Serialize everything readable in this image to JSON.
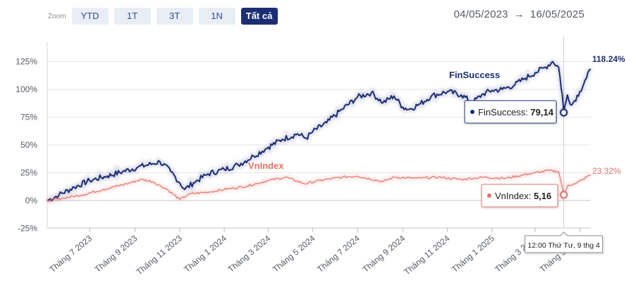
{
  "zoom": {
    "label": "Zoom",
    "buttons": [
      {
        "label": "YTD",
        "active": false
      },
      {
        "label": "1T",
        "active": false
      },
      {
        "label": "3T",
        "active": false
      },
      {
        "label": "1N",
        "active": false
      },
      {
        "label": "Tất cả",
        "active": true
      }
    ]
  },
  "range": {
    "start": "04/05/2023",
    "arrow": "→",
    "end": "16/05/2025"
  },
  "colors": {
    "finsuccess": "#1c2e73",
    "vnindex": "#e2726b",
    "grid": "#e6e6e6",
    "crosshair": "#cfcfcf"
  },
  "chart_data": {
    "type": "line",
    "title": "",
    "xlabel": "",
    "ylabel": "",
    "ylim": [
      -25,
      130
    ],
    "y_ticks": [
      -25,
      0,
      25,
      50,
      75,
      100,
      125
    ],
    "y_tick_labels": [
      "-25%",
      "0%",
      "25%",
      "50%",
      "75%",
      "100%",
      "125%"
    ],
    "x_range": [
      "2023-05-04",
      "2025-05-16"
    ],
    "x_ticks": [
      {
        "date": "2023-07-01",
        "label": "Tháng 7 2023"
      },
      {
        "date": "2023-09-01",
        "label": "Tháng 9 2023"
      },
      {
        "date": "2023-11-01",
        "label": "Tháng 11 2023"
      },
      {
        "date": "2024-01-01",
        "label": "Tháng 1 2024"
      },
      {
        "date": "2024-03-01",
        "label": "Tháng 3 2024"
      },
      {
        "date": "2024-05-01",
        "label": "Tháng 5 2024"
      },
      {
        "date": "2024-07-01",
        "label": "Tháng 7 2024"
      },
      {
        "date": "2024-09-01",
        "label": "Tháng 9 2024"
      },
      {
        "date": "2024-11-01",
        "label": "Tháng 11 2024"
      },
      {
        "date": "2025-01-01",
        "label": "Tháng 1 2025"
      },
      {
        "date": "2025-03-01",
        "label": "Tháng 3 2025"
      },
      {
        "date": "2025-05-01",
        "label": "Tháng 5 2025"
      }
    ],
    "series": [
      {
        "name": "FinSuccess",
        "end_label": "118.24%",
        "points": [
          [
            "2023-05-04",
            0
          ],
          [
            "2023-05-20",
            5
          ],
          [
            "2023-06-10",
            12
          ],
          [
            "2023-07-01",
            18
          ],
          [
            "2023-07-25",
            22
          ],
          [
            "2023-08-15",
            26
          ],
          [
            "2023-09-05",
            30
          ],
          [
            "2023-09-25",
            33
          ],
          [
            "2023-10-05",
            35
          ],
          [
            "2023-10-20",
            26
          ],
          [
            "2023-11-01",
            16
          ],
          [
            "2023-11-08",
            10
          ],
          [
            "2023-11-20",
            16
          ],
          [
            "2023-12-10",
            24
          ],
          [
            "2024-01-01",
            28
          ],
          [
            "2024-01-20",
            32
          ],
          [
            "2024-02-10",
            40
          ],
          [
            "2024-03-01",
            48
          ],
          [
            "2024-03-20",
            55
          ],
          [
            "2024-04-10",
            60
          ],
          [
            "2024-04-22",
            56
          ],
          [
            "2024-05-01",
            62
          ],
          [
            "2024-05-20",
            70
          ],
          [
            "2024-06-10",
            82
          ],
          [
            "2024-07-01",
            93
          ],
          [
            "2024-07-20",
            97
          ],
          [
            "2024-08-05",
            88
          ],
          [
            "2024-08-20",
            94
          ],
          [
            "2024-09-01",
            84
          ],
          [
            "2024-09-10",
            82
          ],
          [
            "2024-09-25",
            87
          ],
          [
            "2024-10-10",
            94
          ],
          [
            "2024-11-01",
            98
          ],
          [
            "2024-11-20",
            95
          ],
          [
            "2024-12-05",
            88
          ],
          [
            "2024-12-20",
            96
          ],
          [
            "2025-01-01",
            99
          ],
          [
            "2025-01-15",
            100
          ],
          [
            "2025-02-01",
            104
          ],
          [
            "2025-02-15",
            110
          ],
          [
            "2025-03-01",
            115
          ],
          [
            "2025-03-15",
            120
          ],
          [
            "2025-03-25",
            125
          ],
          [
            "2025-04-02",
            120
          ],
          [
            "2025-04-07",
            95
          ],
          [
            "2025-04-09",
            79.14
          ],
          [
            "2025-04-14",
            95
          ],
          [
            "2025-04-20",
            86
          ],
          [
            "2025-05-01",
            98
          ],
          [
            "2025-05-10",
            110
          ],
          [
            "2025-05-16",
            118.24
          ]
        ]
      },
      {
        "name": "VnIndex",
        "end_label": "23.32%",
        "points": [
          [
            "2023-05-04",
            0
          ],
          [
            "2023-05-25",
            2
          ],
          [
            "2023-06-20",
            5
          ],
          [
            "2023-07-20",
            10
          ],
          [
            "2023-08-20",
            15
          ],
          [
            "2023-09-10",
            19
          ],
          [
            "2023-09-25",
            17
          ],
          [
            "2023-10-15",
            10
          ],
          [
            "2023-11-01",
            1
          ],
          [
            "2023-11-15",
            6
          ],
          [
            "2023-12-15",
            8
          ],
          [
            "2024-01-01",
            10
          ],
          [
            "2024-02-01",
            13
          ],
          [
            "2024-03-01",
            18
          ],
          [
            "2024-03-25",
            21
          ],
          [
            "2024-04-20",
            15
          ],
          [
            "2024-05-10",
            18
          ],
          [
            "2024-06-10",
            21
          ],
          [
            "2024-07-01",
            22
          ],
          [
            "2024-08-05",
            17
          ],
          [
            "2024-08-20",
            21
          ],
          [
            "2024-09-20",
            20
          ],
          [
            "2024-10-20",
            21
          ],
          [
            "2024-11-20",
            19
          ],
          [
            "2024-12-20",
            21
          ],
          [
            "2025-01-20",
            20
          ],
          [
            "2025-02-20",
            24
          ],
          [
            "2025-03-20",
            27
          ],
          [
            "2025-04-02",
            26
          ],
          [
            "2025-04-07",
            12
          ],
          [
            "2025-04-09",
            5.16
          ],
          [
            "2025-04-15",
            14
          ],
          [
            "2025-04-25",
            15
          ],
          [
            "2025-05-05",
            19
          ],
          [
            "2025-05-16",
            23.32
          ]
        ]
      }
    ],
    "tooltip": {
      "date": "2025-04-09",
      "date_label": "12:00 Thứ Tư, 9 thg 4",
      "items": [
        {
          "series": "FinSuccess",
          "label": "FinSuccess: ",
          "value": "79,14",
          "y": 79.14
        },
        {
          "series": "VnIndex",
          "label": "VnIndex: ",
          "value": "5,16",
          "y": 5.16
        }
      ]
    }
  }
}
